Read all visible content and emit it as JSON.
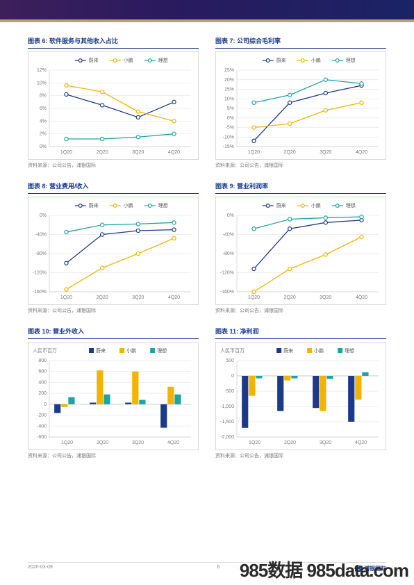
{
  "page": {
    "date": "2020-03-09",
    "page_number": "6",
    "brand": "浦银国际",
    "watermark": "985数据 985data.com"
  },
  "legend_labels": {
    "nio": "蔚来",
    "xpeng": "小鹏",
    "li": "理想"
  },
  "colors": {
    "nio": "#1b3a8a",
    "xpeng": "#f2b400",
    "li": "#1fa4a4",
    "grid": "#e8e8e8",
    "axis": "#cccccc",
    "text": "#7a7a7a"
  },
  "categories": [
    "1Q20",
    "2Q20",
    "3Q20",
    "4Q20"
  ],
  "charts": [
    {
      "id": "c6",
      "title": "图表 6: 软件服务与其他收入占比",
      "type": "line",
      "ylabel_fmt": "pct1",
      "ymin": 0,
      "ymax": 12,
      "ystep": 2,
      "series": {
        "nio": [
          8.2,
          6.5,
          4.6,
          7.0
        ],
        "xpeng": [
          9.6,
          8.6,
          5.5,
          4.0
        ],
        "li": [
          1.2,
          1.2,
          1.5,
          2.0
        ]
      },
      "source": "资料来源：公司公告，浦银国际"
    },
    {
      "id": "c7",
      "title": "图表 7: 公司综合毛利率",
      "type": "line",
      "ylabel_fmt": "pct1",
      "ymin": -15,
      "ymax": 25,
      "ystep": 5,
      "series": {
        "nio": [
          -12,
          8,
          13,
          17
        ],
        "xpeng": [
          -5,
          -3,
          4,
          8
        ],
        "li": [
          8,
          12,
          20,
          18
        ]
      },
      "source": "资料来源：公司公告，浦银国际"
    },
    {
      "id": "c8",
      "title": "图表 8: 营业费用/收入",
      "type": "line",
      "ylabel_fmt": "pct0",
      "ymin": -160,
      "ymax": 0,
      "ystep": 40,
      "series": {
        "nio": [
          -100,
          -40,
          -32,
          -30
        ],
        "xpeng": [
          -155,
          -110,
          -80,
          -48
        ],
        "li": [
          -35,
          -20,
          -18,
          -15
        ]
      },
      "source": "资料来源：公司公告，浦银国际"
    },
    {
      "id": "c9",
      "title": "图表 9: 营业利润率",
      "type": "line",
      "ylabel_fmt": "pct0",
      "ymin": -160,
      "ymax": 0,
      "ystep": 40,
      "series": {
        "nio": [
          -112,
          -28,
          -15,
          -10
        ],
        "xpeng": [
          -160,
          -112,
          -82,
          -45
        ],
        "li": [
          -28,
          -8,
          -5,
          -3
        ]
      },
      "source": "资料来源：公司公告，浦银国际"
    },
    {
      "id": "c10",
      "title": "图表 10: 营业外收入",
      "type": "bar",
      "ylabel": "人民币百万",
      "ymin": -600,
      "ymax": 800,
      "ystep": 200,
      "series": {
        "nio": [
          -160,
          30,
          30,
          -430
        ],
        "xpeng": [
          -50,
          620,
          600,
          320
        ],
        "li": [
          130,
          180,
          80,
          180
        ]
      },
      "source": "资料来源：公司公告，浦银国际"
    },
    {
      "id": "c11",
      "title": "图表 11: 净利润",
      "type": "bar",
      "ylabel": "人民币百万",
      "ymin": -2000,
      "ymax": 500,
      "ystep": 500,
      "series": {
        "nio": [
          -1700,
          -1150,
          -1050,
          -1500
        ],
        "xpeng": [
          -650,
          -150,
          -1150,
          -780
        ],
        "li": [
          -80,
          -80,
          -100,
          120
        ]
      },
      "source": "资料来源：公司公告，浦银国际"
    }
  ]
}
